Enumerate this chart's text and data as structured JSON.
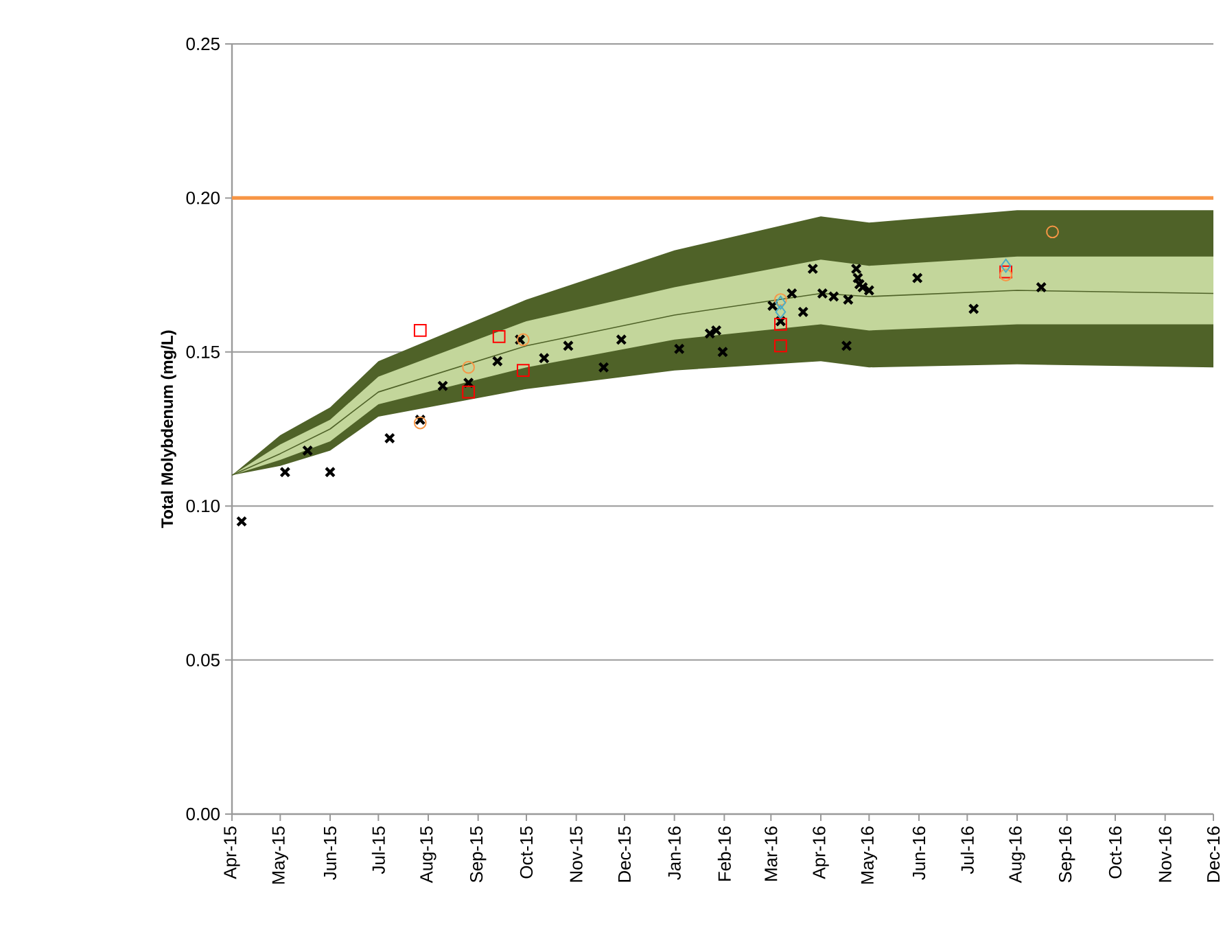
{
  "chart_data": {
    "type": "scatter",
    "ylabel": "Total Molybdenum (mg/L)",
    "x": [
      "2015-04-01",
      "2015-05-01",
      "2015-06-01",
      "2015-07-01",
      "2015-10-01",
      "2016-01-01",
      "2016-04-01",
      "2016-05-01",
      "2016-08-01",
      "2016-12-01"
    ],
    "xlim": [
      "2015-04-01",
      "2016-12-01"
    ],
    "xticks": [
      {
        "value": "2015-04-01",
        "label": "Apr-15"
      },
      {
        "value": "2015-05-01",
        "label": "May-15"
      },
      {
        "value": "2015-06-01",
        "label": "Jun-15"
      },
      {
        "value": "2015-07-01",
        "label": "Jul-15"
      },
      {
        "value": "2015-08-01",
        "label": "Aug-15"
      },
      {
        "value": "2015-09-01",
        "label": "Sep-15"
      },
      {
        "value": "2015-10-01",
        "label": "Oct-15"
      },
      {
        "value": "2015-11-01",
        "label": "Nov-15"
      },
      {
        "value": "2015-12-01",
        "label": "Dec-15"
      },
      {
        "value": "2016-01-01",
        "label": "Jan-16"
      },
      {
        "value": "2016-02-01",
        "label": "Feb-16"
      },
      {
        "value": "2016-03-01",
        "label": "Mar-16"
      },
      {
        "value": "2016-04-01",
        "label": "Apr-16"
      },
      {
        "value": "2016-05-01",
        "label": "May-16"
      },
      {
        "value": "2016-06-01",
        "label": "Jun-16"
      },
      {
        "value": "2016-07-01",
        "label": "Jul-16"
      },
      {
        "value": "2016-08-01",
        "label": "Aug-16"
      },
      {
        "value": "2016-09-01",
        "label": "Sep-16"
      },
      {
        "value": "2016-10-01",
        "label": "Oct-16"
      },
      {
        "value": "2016-11-01",
        "label": "Nov-16"
      },
      {
        "value": "2016-12-01",
        "label": "Dec-16"
      }
    ],
    "ylim": [
      0,
      0.25
    ],
    "yticks": [
      {
        "value": 0,
        "label": "0.00"
      },
      {
        "value": 0.05,
        "label": "0.05"
      },
      {
        "value": 0.1,
        "label": "0.10"
      },
      {
        "value": 0.15,
        "label": "0.15"
      },
      {
        "value": 0.2,
        "label": "0.20"
      },
      {
        "value": 0.25,
        "label": "0.25"
      }
    ],
    "grid": "y",
    "ref_lines": [
      {
        "axis": "y",
        "value": 0.2,
        "color": "#f79646"
      }
    ],
    "series": [
      {
        "type": "line",
        "color": "#4f6228",
        "values": [
          null,
          null,
          null,
          null,
          null,
          null,
          null,
          null,
          null,
          null
        ],
        "upper": [
          0.11,
          0.123,
          0.132,
          0.147,
          0.167,
          0.183,
          0.194,
          0.192,
          0.196,
          0.196
        ],
        "lower": [
          0.11,
          0.113,
          0.118,
          0.129,
          0.138,
          0.144,
          0.147,
          0.145,
          0.146,
          0.145
        ]
      },
      {
        "type": "line",
        "color": "#c3d69b",
        "values": [
          null,
          null,
          null,
          null,
          null,
          null,
          null,
          null,
          null,
          null
        ],
        "upper": [
          0.11,
          0.12,
          0.128,
          0.142,
          0.16,
          0.171,
          0.18,
          0.178,
          0.181,
          0.181
        ],
        "lower": [
          0.11,
          0.115,
          0.121,
          0.133,
          0.145,
          0.154,
          0.159,
          0.157,
          0.159,
          0.159
        ]
      },
      {
        "type": "line",
        "color": "#4f6228",
        "line_style": "solid",
        "values": [
          0.11,
          0.117,
          0.125,
          0.137,
          0.152,
          0.162,
          0.169,
          0.168,
          0.17,
          0.169
        ]
      },
      {
        "color": "#000000",
        "marker": "cross",
        "x": [
          "2015-04-07",
          "2015-05-04",
          "2015-05-18",
          "2015-06-01",
          "2015-07-08",
          "2015-07-27",
          "2015-08-10",
          "2015-08-26",
          "2015-09-13",
          "2015-09-27",
          "2015-10-12",
          "2015-10-27",
          "2015-11-18",
          "2015-11-29",
          "2016-01-04",
          "2016-01-23",
          "2016-01-27",
          "2016-01-31",
          "2016-03-02",
          "2016-03-07",
          "2016-03-14",
          "2016-03-21",
          "2016-03-27",
          "2016-04-02",
          "2016-04-09",
          "2016-04-17",
          "2016-04-18",
          "2016-04-23",
          "2016-04-24",
          "2016-04-25",
          "2016-04-27",
          "2016-05-01",
          "2016-05-31",
          "2016-07-05",
          "2016-08-16"
        ],
        "values": [
          0.095,
          0.111,
          0.118,
          0.111,
          0.122,
          0.128,
          0.139,
          0.14,
          0.147,
          0.154,
          0.148,
          0.152,
          0.145,
          0.154,
          0.151,
          0.156,
          0.157,
          0.15,
          0.165,
          0.16,
          0.169,
          0.163,
          0.177,
          0.169,
          0.168,
          0.152,
          0.167,
          0.177,
          0.174,
          0.172,
          0.171,
          0.17,
          0.174,
          0.164,
          0.171
        ]
      },
      {
        "color": "#ff0000",
        "marker": "square",
        "x": [
          "2015-07-27",
          "2015-08-26",
          "2015-09-14",
          "2015-09-29",
          "2016-03-07",
          "2016-03-07",
          "2016-07-25"
        ],
        "values": [
          0.157,
          0.137,
          0.155,
          0.144,
          0.159,
          0.152,
          0.176
        ]
      },
      {
        "color": "#f79646",
        "marker": "circle",
        "x": [
          "2015-07-27",
          "2015-08-26",
          "2015-09-29",
          "2016-03-07",
          "2016-07-25",
          "2016-08-23"
        ],
        "values": [
          0.127,
          0.145,
          0.154,
          0.167,
          0.175,
          0.189
        ]
      },
      {
        "color": "#4bacc6",
        "marker": "diamond",
        "x": [
          "2016-03-07",
          "2016-03-07",
          "2016-07-25"
        ],
        "values": [
          0.166,
          0.163,
          0.178
        ]
      }
    ]
  }
}
